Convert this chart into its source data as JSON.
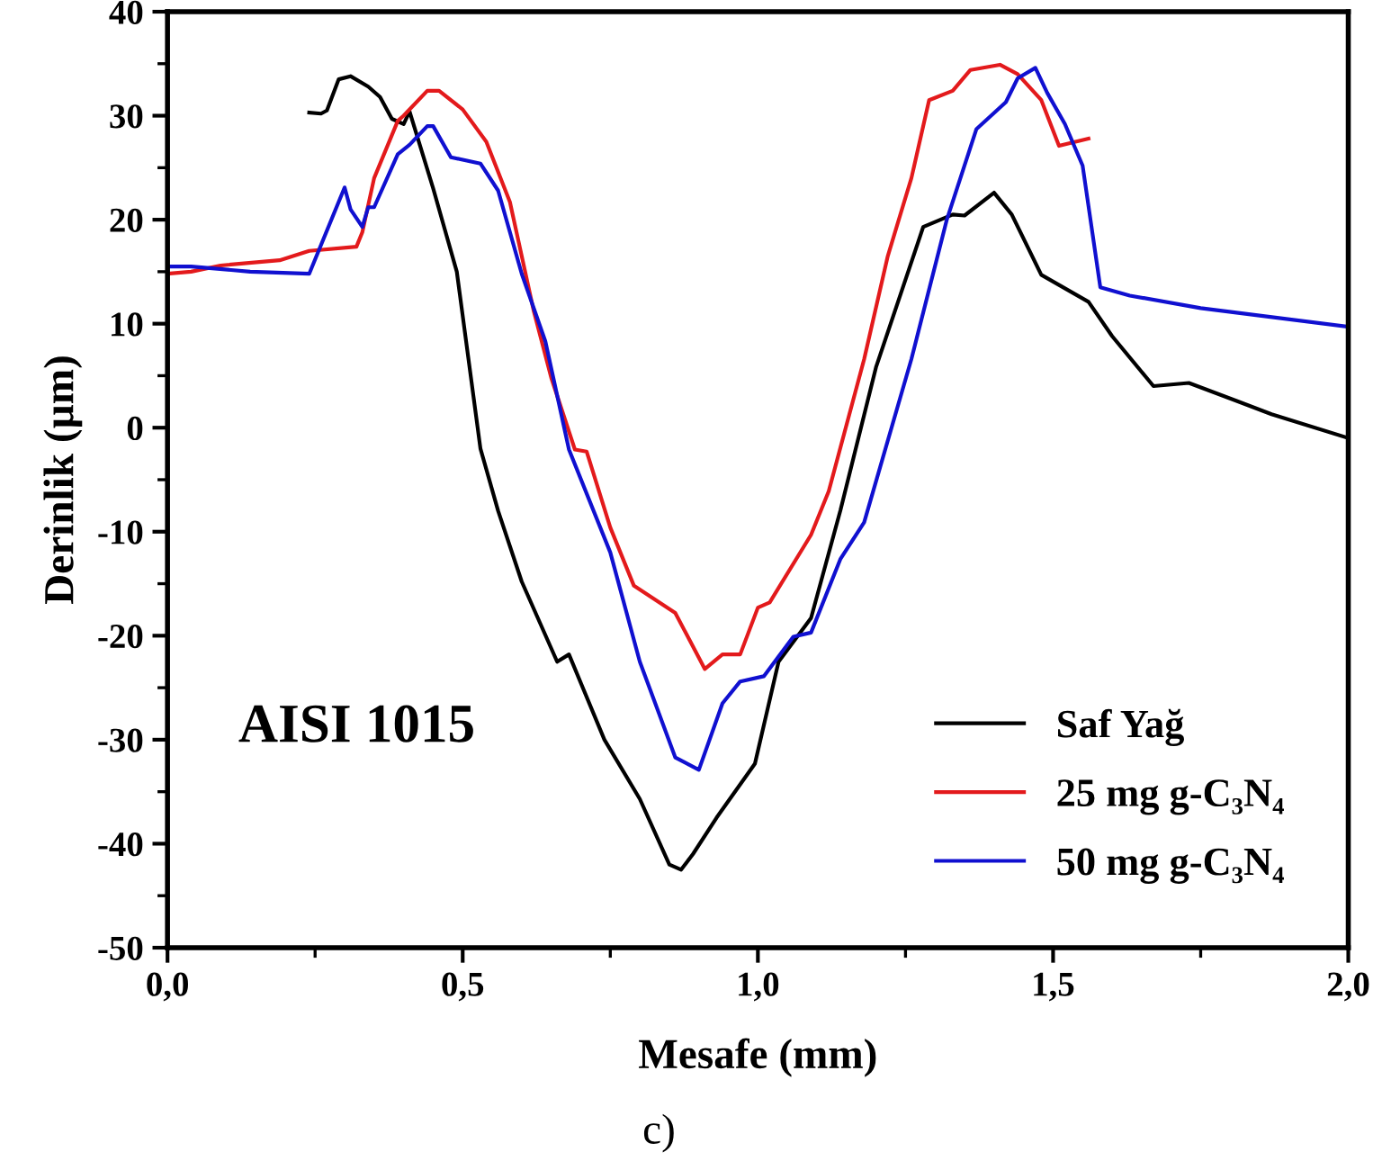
{
  "chart_data": {
    "type": "line",
    "xlabel": "Mesafe (mm)",
    "ylabel": "Derinlik (µm)",
    "annotations": [
      "AISI 1015",
      "c)"
    ],
    "xlim": [
      0,
      2
    ],
    "xticks": [
      {
        "value": 0,
        "label": "0,0"
      },
      {
        "value": 0.5,
        "label": "0,5"
      },
      {
        "value": 1,
        "label": "1,0"
      },
      {
        "value": 1.5,
        "label": "1,5"
      },
      {
        "value": 2,
        "label": "2,0"
      }
    ],
    "ylim": [
      -50,
      40
    ],
    "yticks": [
      -50,
      -40,
      -30,
      -20,
      -10,
      0,
      10,
      20,
      30,
      40
    ],
    "grid": false,
    "legend": "bottom right",
    "marker": "none",
    "line_style": "solid",
    "series": [
      {
        "name": "Saf Yağ",
        "color": "#000000",
        "x": [
          0.24,
          0.26,
          0.27,
          0.29,
          0.31,
          0.34,
          0.36,
          0.38,
          0.4,
          0.41,
          0.45,
          0.49,
          0.53,
          0.56,
          0.6,
          0.66,
          0.68,
          0.74,
          0.8,
          0.85,
          0.87,
          0.89,
          0.93,
          0.995,
          1.035,
          1.09,
          1.14,
          1.2,
          1.28,
          1.33,
          1.35,
          1.4,
          1.43,
          1.48,
          1.56,
          1.6,
          1.67,
          1.73,
          1.81,
          1.87,
          2.0
        ],
        "values": [
          30.3,
          30.2,
          30.5,
          33.5,
          33.8,
          32.8,
          31.8,
          29.7,
          29.2,
          30.4,
          23,
          15,
          -2,
          -8,
          -14.8,
          -22.5,
          -21.8,
          -30,
          -35.7,
          -42,
          -42.5,
          -41,
          -37.5,
          -32.3,
          -22.5,
          -18.3,
          -7.9,
          5.8,
          19.3,
          20.5,
          20.4,
          22.6,
          20.5,
          14.7,
          12.1,
          8.8,
          4,
          4.3,
          2.6,
          1.3,
          -1
        ]
      },
      {
        "name": "25 mg g-C₃N₄",
        "color": "#e31a1c",
        "x": [
          0.0,
          0.04,
          0.09,
          0.19,
          0.24,
          0.32,
          0.33,
          0.35,
          0.39,
          0.4,
          0.44,
          0.46,
          0.5,
          0.54,
          0.58,
          0.62,
          0.65,
          0.69,
          0.71,
          0.75,
          0.79,
          0.86,
          0.91,
          0.94,
          0.97,
          1.0,
          1.02,
          1.09,
          1.12,
          1.18,
          1.22,
          1.26,
          1.29,
          1.33,
          1.36,
          1.41,
          1.44,
          1.48,
          1.51,
          1.56
        ],
        "values": [
          14.8,
          15,
          15.6,
          16.1,
          17,
          17.4,
          18.8,
          24,
          29.5,
          30,
          32.4,
          32.4,
          30.6,
          27.5,
          21.7,
          11.3,
          4.8,
          -2.1,
          -2.3,
          -9.6,
          -15.2,
          -17.8,
          -23.2,
          -21.8,
          -21.8,
          -17.3,
          -16.8,
          -10.3,
          -6.1,
          6.6,
          16.5,
          24,
          31.5,
          32.4,
          34.4,
          34.9,
          34,
          31.5,
          27.1,
          27.8
        ]
      },
      {
        "name": "50 mg g-C₃N₄",
        "color": "#1010d0",
        "x": [
          0.0,
          0.04,
          0.14,
          0.24,
          0.3,
          0.31,
          0.33,
          0.34,
          0.35,
          0.39,
          0.41,
          0.44,
          0.45,
          0.48,
          0.53,
          0.56,
          0.6,
          0.64,
          0.68,
          0.75,
          0.8,
          0.86,
          0.9,
          0.94,
          0.97,
          1.01,
          1.06,
          1.09,
          1.14,
          1.18,
          1.26,
          1.32,
          1.37,
          1.42,
          1.44,
          1.47,
          1.49,
          1.52,
          1.55,
          1.58,
          1.63,
          1.75,
          2.0
        ],
        "values": [
          15.5,
          15.5,
          15,
          14.8,
          23.1,
          21,
          19.3,
          21.2,
          21.2,
          26.3,
          27.2,
          29,
          29,
          26,
          25.4,
          22.8,
          14.8,
          8.3,
          -2.1,
          -12,
          -22.5,
          -31.7,
          -32.9,
          -26.5,
          -24.4,
          -23.9,
          -20.1,
          -19.7,
          -12.6,
          -9.1,
          6.6,
          20,
          28.7,
          31.3,
          33.6,
          34.6,
          32.2,
          29.2,
          25.2,
          13.5,
          12.7,
          11.5,
          9.7
        ]
      }
    ]
  }
}
